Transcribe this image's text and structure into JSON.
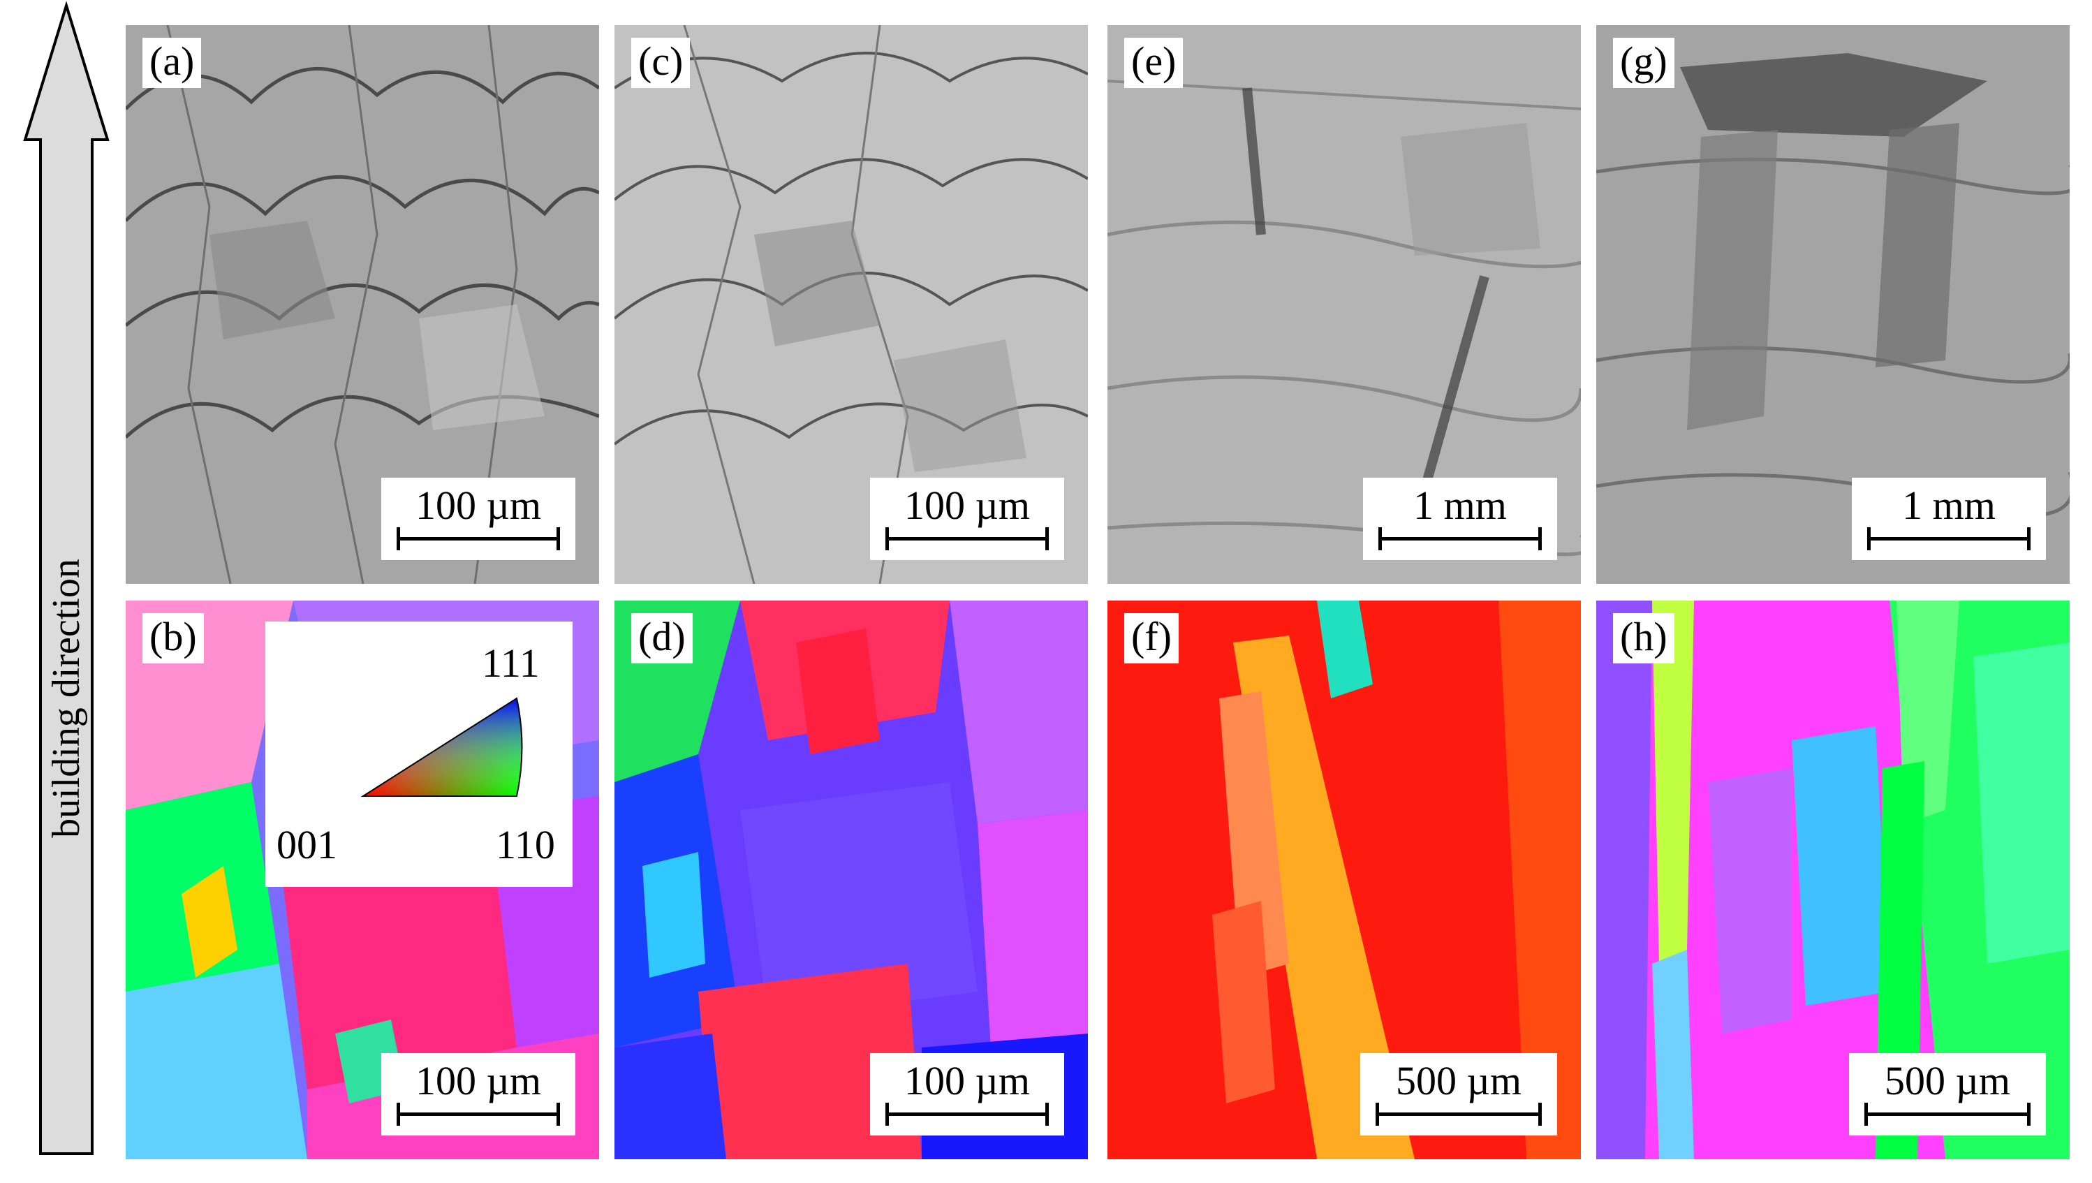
{
  "axis_label": "building direction",
  "panels": {
    "a": {
      "label": "(a)",
      "scale": "100 µm",
      "kind": "optical micrograph"
    },
    "b": {
      "label": "(b)",
      "scale": "100 µm",
      "kind": "EBSD orientation map"
    },
    "c": {
      "label": "(c)",
      "scale": "100 µm",
      "kind": "optical micrograph"
    },
    "d": {
      "label": "(d)",
      "scale": "100 µm",
      "kind": "EBSD orientation map"
    },
    "e": {
      "label": "(e)",
      "scale": "1 mm",
      "kind": "optical micrograph"
    },
    "f": {
      "label": "(f)",
      "scale": "500 µm",
      "kind": "EBSD orientation map"
    },
    "g": {
      "label": "(g)",
      "scale": "1 mm",
      "kind": "optical micrograph"
    },
    "h": {
      "label": "(h)",
      "scale": "500 µm",
      "kind": "EBSD orientation map"
    }
  },
  "ipf_legend": {
    "top": "111",
    "left": "001",
    "right": "110"
  },
  "colors": {
    "optical_gray": "#a8a8a8",
    "ipf_001": "#ff0000",
    "ipf_110": "#00ff00",
    "ipf_111": "#0000ff",
    "arrow_fill": "#dcdcdc"
  }
}
